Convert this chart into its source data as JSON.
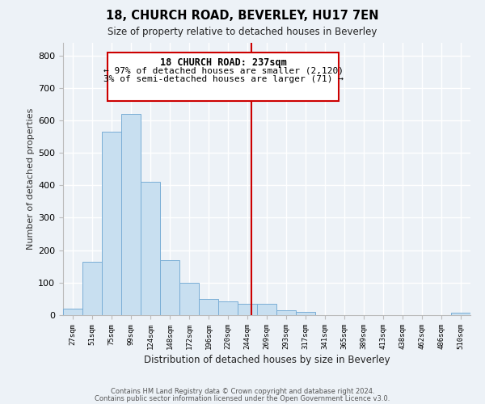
{
  "title1": "18, CHURCH ROAD, BEVERLEY, HU17 7EN",
  "title2": "Size of property relative to detached houses in Beverley",
  "xlabel": "Distribution of detached houses by size in Beverley",
  "ylabel": "Number of detached properties",
  "bin_labels": [
    "27sqm",
    "51sqm",
    "75sqm",
    "99sqm",
    "124sqm",
    "148sqm",
    "172sqm",
    "196sqm",
    "220sqm",
    "244sqm",
    "269sqm",
    "293sqm",
    "317sqm",
    "341sqm",
    "365sqm",
    "389sqm",
    "413sqm",
    "438sqm",
    "462sqm",
    "486sqm",
    "510sqm"
  ],
  "bar_heights": [
    20,
    165,
    565,
    620,
    410,
    170,
    100,
    50,
    42,
    35,
    35,
    15,
    10,
    0,
    0,
    0,
    0,
    0,
    0,
    0,
    8
  ],
  "bar_color": "#c8dff0",
  "bar_edge_color": "#7aaed6",
  "vline_color": "#cc0000",
  "annotation_title": "18 CHURCH ROAD: 237sqm",
  "annotation_line1": "← 97% of detached houses are smaller (2,120)",
  "annotation_line2": "3% of semi-detached houses are larger (71) →",
  "annotation_box_facecolor": "#ffffff",
  "annotation_box_edgecolor": "#cc0000",
  "ylim": [
    0,
    840
  ],
  "yticks": [
    0,
    100,
    200,
    300,
    400,
    500,
    600,
    700,
    800
  ],
  "footer1": "Contains HM Land Registry data © Crown copyright and database right 2024.",
  "footer2": "Contains public sector information licensed under the Open Government Licence v3.0.",
  "bg_color": "#edf2f7"
}
